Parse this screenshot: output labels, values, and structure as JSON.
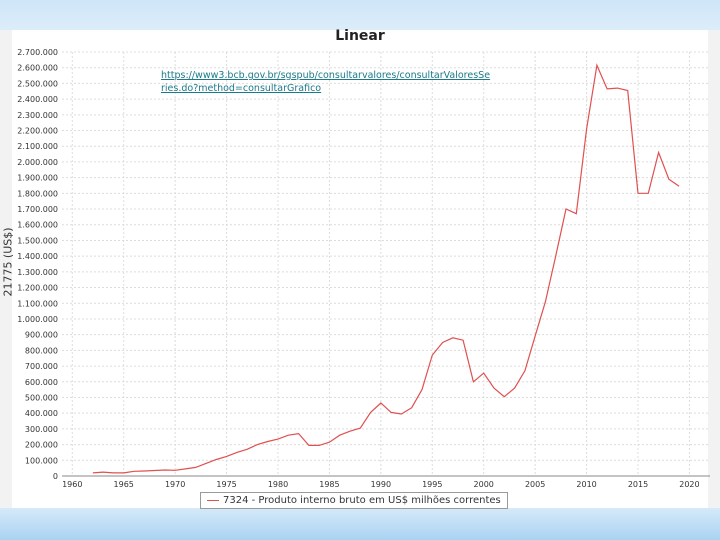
{
  "chart_data": {
    "type": "line",
    "title": "Linear",
    "ylabel": "21775 (US$)",
    "url_annotation": "https://www3.bcb.gov.br/sgspub/consultarvalores/consultarValoresSeries.do?method=consultarGrafico",
    "legend": "7324 - Produto interno bruto em US$ milhões correntes",
    "ylim": [
      0,
      2700000
    ],
    "xlim": [
      1959,
      2022
    ],
    "y_ticks": [
      "0",
      "100.000",
      "200.000",
      "300.000",
      "400.000",
      "500.000",
      "600.000",
      "700.000",
      "800.000",
      "900.000",
      "1.000.000",
      "1.100.000",
      "1.200.000",
      "1.300.000",
      "1.400.000",
      "1.500.000",
      "1.600.000",
      "1.700.000",
      "1.800.000",
      "1.900.000",
      "2.000.000",
      "2.100.000",
      "2.200.000",
      "2.300.000",
      "2.400.000",
      "2.500.000",
      "2.600.000",
      "2.700.000"
    ],
    "x_ticks": [
      "1960",
      "1965",
      "1970",
      "1975",
      "1980",
      "1985",
      "1990",
      "1995",
      "2000",
      "2005",
      "2010",
      "2015",
      "2020"
    ],
    "grid": true,
    "series": [
      {
        "name": "7324 - Produto interno bruto em US$ milhões correntes",
        "color": "#e05050",
        "x": [
          1962,
          1963,
          1964,
          1965,
          1966,
          1967,
          1968,
          1969,
          1970,
          1971,
          1972,
          1973,
          1974,
          1975,
          1976,
          1977,
          1978,
          1979,
          1980,
          1981,
          1982,
          1983,
          1984,
          1985,
          1986,
          1987,
          1988,
          1989,
          1990,
          1991,
          1992,
          1993,
          1994,
          1995,
          1996,
          1997,
          1998,
          1999,
          2000,
          2001,
          2002,
          2003,
          2004,
          2005,
          2006,
          2007,
          2008,
          2009,
          2010,
          2011,
          2012,
          2013,
          2014,
          2015,
          2016,
          2017,
          2018,
          2019
        ],
        "y": [
          20000,
          25000,
          20000,
          20000,
          30000,
          32000,
          35000,
          38000,
          36000,
          45000,
          55000,
          80000,
          105000,
          125000,
          150000,
          170000,
          200000,
          220000,
          235000,
          260000,
          270000,
          195000,
          195000,
          215000,
          260000,
          285000,
          305000,
          405000,
          465000,
          405000,
          395000,
          435000,
          550000,
          770000,
          850000,
          880000,
          865000,
          600000,
          655000,
          560000,
          505000,
          560000,
          670000,
          890000,
          1110000,
          1400000,
          1700000,
          1670000,
          2210000,
          2615000,
          2465000,
          2470000,
          2455000,
          1800000,
          1800000,
          2060000,
          1890000,
          1845000
        ]
      }
    ]
  }
}
